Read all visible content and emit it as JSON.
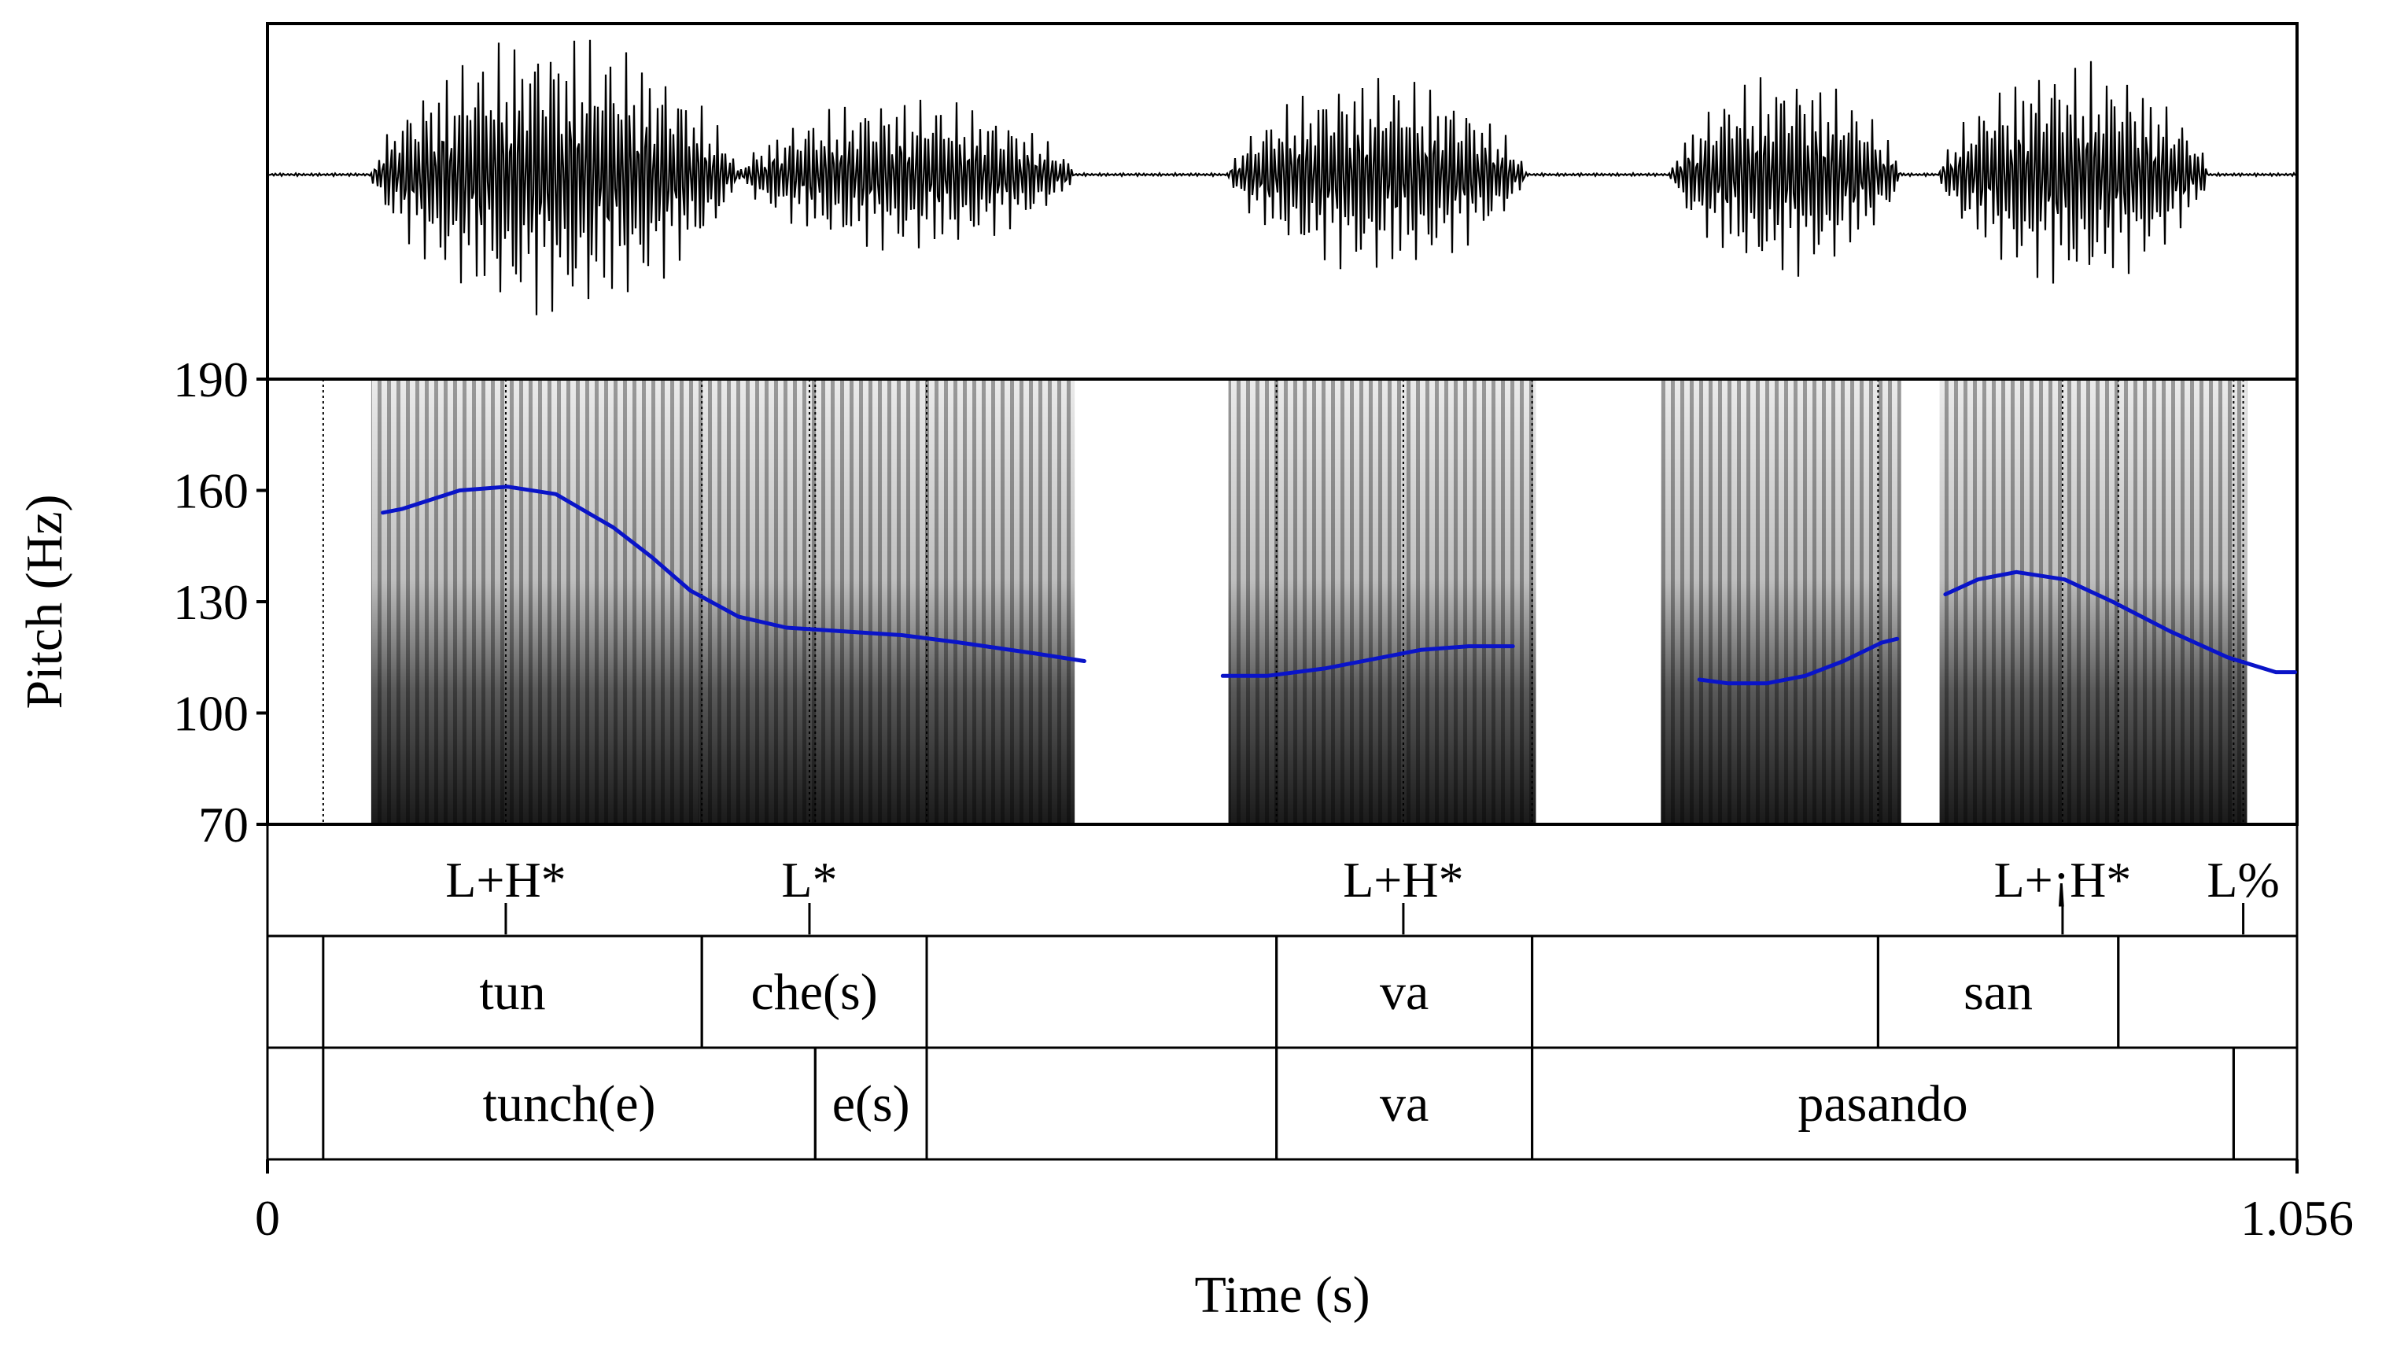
{
  "chart_data": {
    "type": "line",
    "title": "",
    "xlabel": "Time (s)",
    "ylabel": "Pitch (Hz)",
    "xlim": [
      0,
      1.056
    ],
    "ylim": [
      70,
      190
    ],
    "x_tick_labels": [
      "0",
      "1.056"
    ],
    "y_tick_values": [
      70,
      100,
      130,
      160,
      190
    ],
    "y_tick_labels": [
      "70",
      "100",
      "130",
      "160",
      "190"
    ],
    "series": [
      {
        "name": "pitch-contour-1",
        "x": [
          0.06,
          0.07,
          0.1,
          0.125,
          0.15,
          0.18,
          0.2,
          0.22,
          0.245,
          0.27,
          0.3,
          0.33,
          0.36,
          0.4,
          0.425
        ],
        "y": [
          154,
          155,
          160,
          161,
          159,
          150,
          142,
          133,
          126,
          123,
          122,
          121,
          119,
          116,
          114
        ]
      },
      {
        "name": "pitch-contour-2",
        "x": [
          0.497,
          0.52,
          0.55,
          0.58,
          0.6,
          0.625,
          0.648
        ],
        "y": [
          110,
          110,
          112,
          115,
          117,
          118,
          118
        ]
      },
      {
        "name": "pitch-contour-3",
        "x": [
          0.745,
          0.76,
          0.78,
          0.8,
          0.82,
          0.84,
          0.848
        ],
        "y": [
          109,
          108,
          108,
          110,
          114,
          119,
          120
        ]
      },
      {
        "name": "pitch-contour-4",
        "x": [
          0.873,
          0.89,
          0.91,
          0.935,
          0.96,
          0.99,
          1.02,
          1.045,
          1.055
        ],
        "y": [
          132,
          136,
          138,
          136,
          130,
          122,
          115,
          111,
          111
        ]
      }
    ],
    "annotations": {
      "tones": [
        {
          "label": "L+H*",
          "time": 0.124
        },
        {
          "label": "L*",
          "time": 0.282
        },
        {
          "label": "L+H*",
          "time": 0.591
        },
        {
          "label": "L+¡H*",
          "time": 0.934
        },
        {
          "label": "L%",
          "time": 1.028
        }
      ],
      "syllables": [
        {
          "label": "tun",
          "start": 0.029,
          "end": 0.226
        },
        {
          "label": "che(s)",
          "start": 0.226,
          "end": 0.343
        },
        {
          "label": "",
          "start": 0.343,
          "end": 0.525
        },
        {
          "label": "va",
          "start": 0.525,
          "end": 0.658
        },
        {
          "label": "",
          "start": 0.658,
          "end": 0.838
        },
        {
          "label": "san",
          "start": 0.838,
          "end": 0.963
        },
        {
          "label": "",
          "start": 0.963,
          "end": 1.056
        }
      ],
      "words": [
        {
          "label": "tunch(e)",
          "start": 0.029,
          "end": 0.285
        },
        {
          "label": "e(s)",
          "start": 0.285,
          "end": 0.343
        },
        {
          "label": "",
          "start": 0.343,
          "end": 0.525
        },
        {
          "label": "va",
          "start": 0.525,
          "end": 0.658
        },
        {
          "label": "pasando",
          "start": 0.658,
          "end": 1.023
        },
        {
          "label": "",
          "start": 1.023,
          "end": 1.056
        }
      ]
    }
  }
}
